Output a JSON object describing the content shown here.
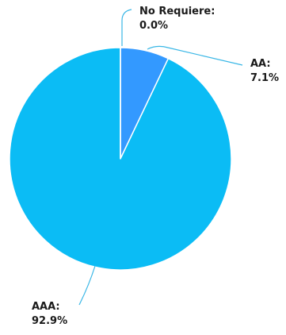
{
  "chart_data": {
    "type": "pie",
    "slices": [
      {
        "label": "No Requiere:",
        "value": 0.0,
        "value_label": "0.0%",
        "color": "#2e86ff"
      },
      {
        "label": "AA:",
        "value": 7.1,
        "value_label": "7.1%",
        "color": "#3399ff"
      },
      {
        "label": "AAA:",
        "value": 92.9,
        "value_label": "92.9%",
        "color": "#0bbcf5"
      }
    ],
    "start_angle_deg": 0,
    "direction": "clockwise",
    "slice_border_color": "#ffffff",
    "leader_line_color": "#3ab7e6",
    "title": "",
    "legend": "none"
  }
}
